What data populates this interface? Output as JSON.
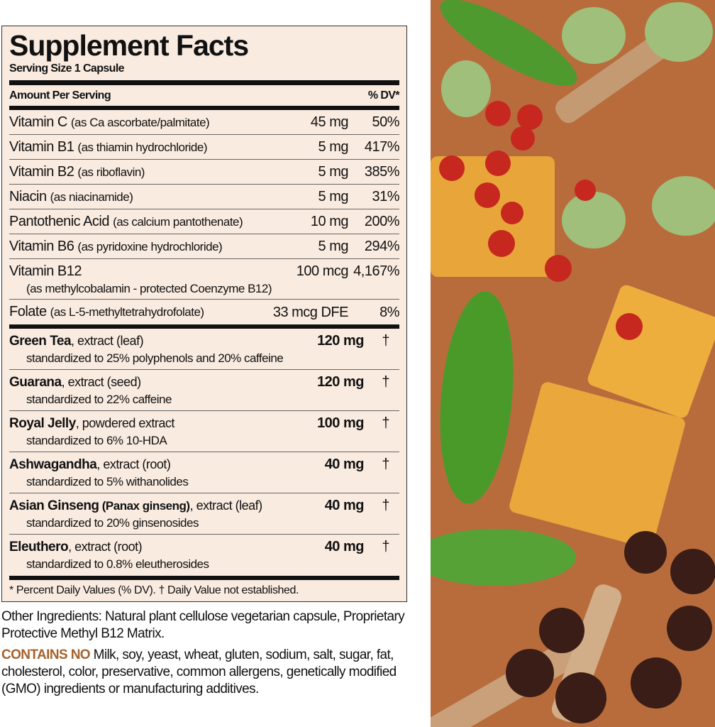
{
  "panel": {
    "title": "Supplement Facts",
    "serving_size": "Serving Size 1 Capsule",
    "amount_header": "Amount Per Serving",
    "dv_header": "% DV*",
    "vitamins": [
      {
        "name": "Vitamin C",
        "detail": "(as Ca ascorbate/palmitate)",
        "amount": "45 mg",
        "dv": "50%"
      },
      {
        "name": "Vitamin B1",
        "detail": "(as thiamin hydrochloride)",
        "amount": "5 mg",
        "dv": "417%"
      },
      {
        "name": "Vitamin B2",
        "detail": "(as riboflavin)",
        "amount": "5 mg",
        "dv": "385%"
      },
      {
        "name": "Niacin",
        "detail": "(as niacinamide)",
        "amount": "5 mg",
        "dv": "31%"
      },
      {
        "name": "Pantothenic Acid",
        "detail": "(as calcium pantothenate)",
        "amount": "10 mg",
        "dv": "200%"
      },
      {
        "name": "Vitamin B6",
        "detail": "(as pyridoxine hydrochloride)",
        "amount": "5 mg",
        "dv": "294%"
      },
      {
        "name": "Vitamin B12",
        "detail": "(as methylcobalamin - protected Coenzyme B12)",
        "amount": "100 mcg",
        "dv": "4,167%"
      },
      {
        "name": "Folate",
        "detail": "(as L-5-methyltetrahydrofolate)",
        "amount": "33 mcg DFE",
        "dv": "8%"
      }
    ],
    "herbals": [
      {
        "name": "Green Tea",
        "detail": ", extract (leaf)",
        "sub": "standardized to 25% polyphenols and 20% caffeine",
        "amount": "120 mg",
        "dv": "†"
      },
      {
        "name": "Guarana",
        "detail": ", extract (seed)",
        "sub": "standardized to 22% caffeine",
        "amount": "120 mg",
        "dv": "†"
      },
      {
        "name": "Royal Jelly",
        "detail": ", powdered extract",
        "sub": "standardized to 6% 10-HDA",
        "amount": "100 mg",
        "dv": "†"
      },
      {
        "name": "Ashwagandha",
        "detail": ", extract (root)",
        "sub": "standardized to 5% withanolides",
        "amount": "40 mg",
        "dv": "†"
      },
      {
        "name": "Asian Ginseng",
        "name2": " (Panax ginseng)",
        "detail": ", extract (leaf)",
        "sub": "standardized to 20% ginsenosides",
        "amount": "40 mg",
        "dv": "†"
      },
      {
        "name": "Eleuthero",
        "detail": ", extract (root)",
        "sub": "standardized to 0.8% eleutherosides",
        "amount": "40 mg",
        "dv": "†"
      }
    ],
    "footnote": "* Percent Daily Values (% DV). † Daily Value not established."
  },
  "other_ingredients": "Other Ingredients: Natural plant cellulose vegetarian capsule, Proprietary Protective Methyl B12 Matrix.",
  "contains_no_label": "CONTAINS NO",
  "contains_no_text": " Milk, soy, yeast, wheat, gluten, sodium, salt, sugar, fat, cholesterol, color, preservative, common allergens, genetically modified (GMO) ingredients or manufacturing additives.",
  "colors": {
    "panel_bg": "#f9ebe0",
    "accent": "#a5622d",
    "art_bg": "#b86c3c"
  }
}
